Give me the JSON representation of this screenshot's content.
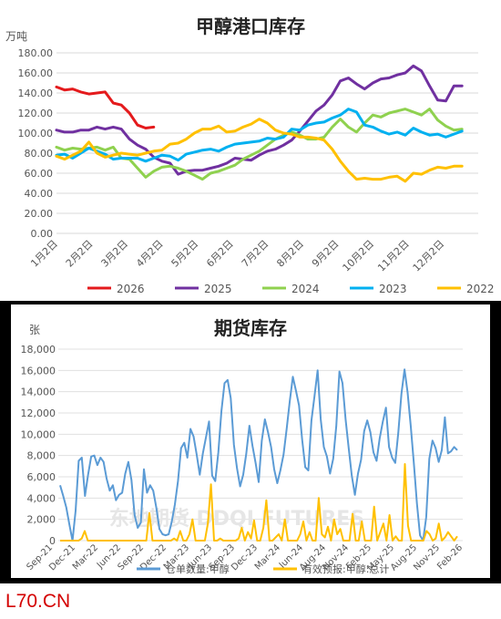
{
  "chart_data": [
    {
      "type": "line",
      "title": "甲醇港口库存",
      "ylabel": "万吨",
      "ylim": [
        0,
        180
      ],
      "yticks": [
        "0.00",
        "20.00",
        "40.00",
        "60.00",
        "80.00",
        "100.00",
        "120.00",
        "140.00",
        "160.00",
        "180.00"
      ],
      "xticks": [
        "1月2日",
        "2月2日",
        "3月2日",
        "4月2日",
        "5月2日",
        "6月2日",
        "7月2日",
        "8月2日",
        "9月2日",
        "10月2日",
        "11月2日",
        "12月2日"
      ],
      "x_unit": "week of year",
      "grid": true,
      "legend_position": "bottom",
      "series": [
        {
          "name": "2026",
          "color": "#e41a1c",
          "x": [
            0,
            1,
            2,
            3,
            4,
            5,
            6,
            7,
            8,
            9,
            10,
            11,
            12
          ],
          "values": [
            146,
            143,
            144,
            141,
            139,
            140,
            141,
            130,
            128,
            120,
            108,
            105,
            106
          ]
        },
        {
          "name": "2025",
          "color": "#7030a0",
          "x": [
            0,
            1,
            2,
            3,
            4,
            5,
            6,
            7,
            8,
            9,
            10,
            11,
            12,
            13,
            14,
            15,
            16,
            17,
            18,
            19,
            20,
            21,
            22,
            23,
            24,
            25,
            26,
            27,
            28,
            29,
            30,
            31,
            32,
            33,
            34,
            35,
            36,
            37,
            38,
            39,
            40,
            41,
            42,
            43,
            44,
            45,
            46,
            47,
            48,
            49,
            50
          ],
          "values": [
            103,
            101,
            101,
            103,
            103,
            106,
            104,
            106,
            104,
            94,
            88,
            84,
            76,
            72,
            70,
            59,
            62,
            63,
            63,
            65,
            67,
            70,
            75,
            74,
            73,
            78,
            82,
            84,
            88,
            93,
            102,
            112,
            122,
            128,
            138,
            152,
            155,
            149,
            144,
            150,
            154,
            155,
            158,
            160,
            167,
            162,
            147,
            133,
            132,
            147,
            147
          ]
        },
        {
          "name": "2024",
          "color": "#8fd14f",
          "x": [
            0,
            1,
            2,
            3,
            4,
            5,
            6,
            7,
            8,
            9,
            10,
            11,
            12,
            13,
            14,
            15,
            16,
            17,
            18,
            19,
            20,
            21,
            22,
            23,
            24,
            25,
            26,
            27,
            28,
            29,
            30,
            31,
            32,
            33,
            34,
            35,
            36,
            37,
            38,
            39,
            40,
            41,
            42,
            43,
            44,
            45,
            46,
            47,
            48,
            49,
            50
          ],
          "values": [
            86,
            83,
            85,
            84,
            85,
            86,
            83,
            86,
            75,
            74,
            65,
            56,
            62,
            66,
            67,
            65,
            62,
            58,
            54,
            60,
            62,
            65,
            68,
            74,
            78,
            82,
            88,
            94,
            98,
            101,
            98,
            94,
            94,
            96,
            106,
            114,
            106,
            101,
            110,
            118,
            116,
            120,
            122,
            124,
            121,
            118,
            124,
            113,
            107,
            103,
            104
          ]
        },
        {
          "name": "2023",
          "color": "#00b0f0",
          "x": [
            0,
            1,
            2,
            3,
            4,
            5,
            6,
            7,
            8,
            9,
            10,
            11,
            12,
            13,
            14,
            15,
            16,
            17,
            18,
            19,
            20,
            21,
            22,
            23,
            24,
            25,
            26,
            27,
            28,
            29,
            30,
            31,
            32,
            33,
            34,
            35,
            36,
            37,
            38,
            39,
            40,
            41,
            42,
            43,
            44,
            45,
            46,
            47,
            48,
            49,
            50
          ],
          "values": [
            78,
            79,
            75,
            80,
            85,
            82,
            79,
            74,
            75,
            75,
            75,
            72,
            75,
            78,
            77,
            73,
            79,
            81,
            83,
            84,
            82,
            86,
            89,
            90,
            91,
            92,
            95,
            94,
            96,
            104,
            103,
            108,
            110,
            111,
            115,
            118,
            124,
            121,
            108,
            106,
            102,
            99,
            101,
            98,
            105,
            101,
            98,
            99,
            96,
            99,
            102
          ]
        },
        {
          "name": "2022",
          "color": "#ffc000",
          "x": [
            0,
            1,
            2,
            3,
            4,
            5,
            6,
            7,
            8,
            9,
            10,
            11,
            12,
            13,
            14,
            15,
            16,
            17,
            18,
            19,
            20,
            21,
            22,
            23,
            24,
            25,
            26,
            27,
            28,
            29,
            30,
            31,
            32,
            33,
            34,
            35,
            36,
            37,
            38,
            39,
            40,
            41,
            42,
            43,
            44,
            45,
            46,
            47,
            48,
            49,
            50
          ],
          "values": [
            77,
            74,
            78,
            82,
            91,
            80,
            76,
            78,
            80,
            79,
            78,
            80,
            82,
            83,
            89,
            90,
            94,
            100,
            104,
            104,
            107,
            101,
            102,
            106,
            109,
            114,
            110,
            103,
            100,
            99,
            96,
            96,
            95,
            93,
            84,
            72,
            62,
            54,
            55,
            54,
            54,
            56,
            57,
            52,
            60,
            59,
            63,
            66,
            65,
            67,
            67
          ]
        }
      ]
    },
    {
      "type": "line",
      "title": "期货库存",
      "ylabel": "张",
      "ylim": [
        0,
        18000
      ],
      "yticks": [
        "0",
        "2,000",
        "4,000",
        "6,000",
        "8,000",
        "10,000",
        "12,000",
        "14,000",
        "16,000",
        "18,000"
      ],
      "xticks": [
        "Sep-21",
        "Dec-21",
        "Mar-22",
        "Jun-22",
        "Sep-22",
        "Dec-22",
        "Mar-23",
        "Jun-23",
        "Sep-23",
        "Dec-23",
        "Mar-24",
        "Jun-24",
        "Aug-24",
        "Nov-24",
        "Feb-25",
        "May-25",
        "Aug-25",
        "Nov-25",
        "Feb-26"
      ],
      "grid": true,
      "legend_position": "bottom",
      "watermark": "东地期货 DDQI FUTURES",
      "series": [
        {
          "name": "仓单数量:甲醇",
          "color": "#5b9bd5",
          "values": [
            5200,
            4200,
            3100,
            1500,
            0,
            2800,
            7500,
            7800,
            4200,
            6200,
            7900,
            8000,
            7100,
            7800,
            7400,
            5800,
            4700,
            5200,
            3800,
            4300,
            4500,
            6300,
            7400,
            5700,
            2400,
            1200,
            1700,
            6700,
            4500,
            5200,
            4700,
            3100,
            1100,
            600,
            500,
            600,
            1800,
            3400,
            5600,
            8700,
            9200,
            7800,
            10500,
            9800,
            8100,
            6200,
            8200,
            9700,
            11200,
            6100,
            5600,
            8300,
            12200,
            14800,
            15100,
            13400,
            9000,
            6800,
            5100,
            6200,
            8200,
            10800,
            8900,
            7300,
            5500,
            9400,
            11400,
            10200,
            8800,
            6700,
            5400,
            6600,
            8100,
            10500,
            13100,
            15400,
            14100,
            12700,
            9500,
            6900,
            6600,
            11300,
            13600,
            16000,
            11400,
            8800,
            7900,
            6300,
            7700,
            10800,
            15900,
            14800,
            11400,
            8700,
            6100,
            4300,
            6300,
            7600,
            10300,
            11300,
            10200,
            8300,
            7500,
            9600,
            11200,
            12500,
            8800,
            7800,
            7300,
            10200,
            13800,
            16100,
            13900,
            10800,
            7300,
            3500,
            500,
            0,
            2200,
            7700,
            9400,
            8700,
            7400,
            8500,
            11600,
            8200,
            8400,
            8800,
            8500
          ]
        },
        {
          "name": "有效预报:甲醇:总计",
          "color": "#ffc000",
          "values": [
            0,
            0,
            0,
            0,
            0,
            0,
            0,
            200,
            900,
            0,
            0,
            0,
            0,
            0,
            0,
            0,
            0,
            0,
            0,
            0,
            0,
            0,
            0,
            0,
            0,
            0,
            0,
            0,
            0,
            2600,
            0,
            0,
            0,
            0,
            0,
            0,
            0,
            200,
            0,
            900,
            0,
            0,
            600,
            2000,
            0,
            0,
            0,
            0,
            1600,
            5300,
            0,
            0,
            200,
            0,
            0,
            0,
            0,
            0,
            200,
            1200,
            0,
            800,
            200,
            1900,
            0,
            0,
            1200,
            3800,
            0,
            0,
            300,
            600,
            0,
            2000,
            0,
            0,
            0,
            0,
            600,
            1800,
            0,
            800,
            0,
            0,
            4000,
            600,
            300,
            1300,
            0,
            2000,
            600,
            1100,
            0,
            0,
            0,
            2500,
            0,
            0,
            1800,
            0,
            0,
            0,
            3200,
            0,
            800,
            1600,
            0,
            2400,
            0,
            400,
            0,
            0,
            7200,
            1400,
            0,
            0,
            0,
            0,
            0,
            900,
            600,
            0,
            200,
            1600,
            0,
            300,
            800,
            400,
            0,
            400
          ]
        }
      ]
    }
  ],
  "footer": {
    "brand": "L70.CN"
  }
}
